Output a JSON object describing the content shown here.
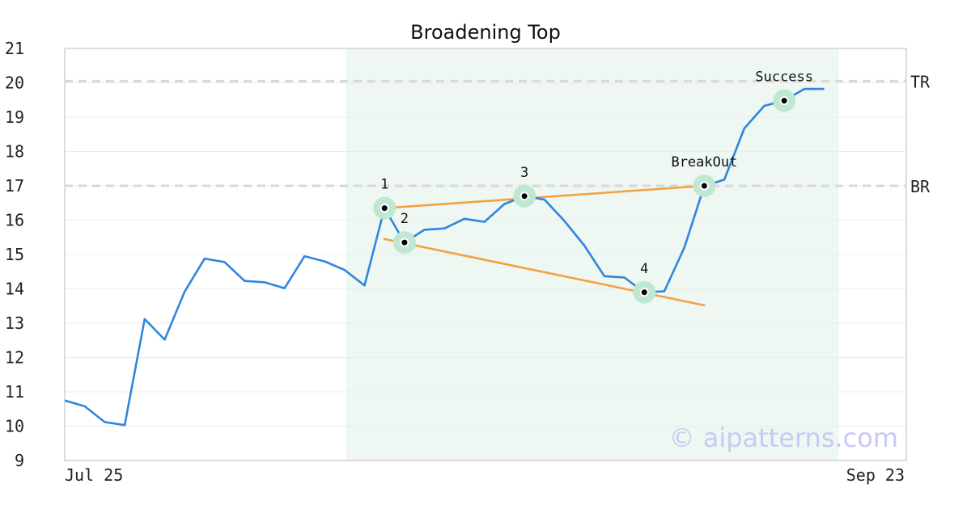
{
  "chart_data": {
    "type": "line",
    "title": "Broadening Top",
    "xlabel": "",
    "ylabel": "",
    "ylim": [
      9,
      21
    ],
    "yticks": [
      9,
      10,
      11,
      12,
      13,
      14,
      15,
      16,
      17,
      18,
      19,
      20,
      21
    ],
    "x_tick_labels": [
      "Jul 25",
      "Sep 23"
    ],
    "grid": true,
    "series": [
      {
        "color": "#2e86de",
        "values": [
          10.75,
          10.58,
          10.12,
          10.03,
          13.12,
          12.52,
          13.92,
          14.88,
          14.78,
          14.23,
          14.19,
          14.02,
          14.95,
          14.8,
          14.55,
          14.1,
          16.35,
          15.35,
          15.72,
          15.76,
          16.04,
          15.95,
          16.47,
          16.7,
          16.6,
          15.98,
          15.26,
          14.37,
          14.33,
          13.9,
          13.93,
          15.2,
          17.0,
          17.18,
          18.67,
          19.33,
          19.48,
          19.82,
          19.82
        ]
      }
    ],
    "reference_lines": [
      {
        "label": "TR",
        "y": 20.05
      },
      {
        "label": "BR",
        "y": 17.0
      }
    ],
    "highlight_region": {
      "from_index": 14,
      "to_index": 38,
      "color": "#eef7f2"
    },
    "trend_lines": [
      {
        "color": "#f4a043",
        "from": [
          16,
          16.35
        ],
        "to": [
          32,
          17.0
        ]
      },
      {
        "color": "#f4a043",
        "from": [
          16,
          15.45
        ],
        "to": [
          32,
          13.52
        ]
      }
    ],
    "annotations": [
      {
        "label": "1",
        "index": 16,
        "y": 16.35
      },
      {
        "label": "2",
        "index": 17,
        "y": 15.35
      },
      {
        "label": "3",
        "index": 23,
        "y": 16.7
      },
      {
        "label": "4",
        "index": 29,
        "y": 13.9
      },
      {
        "label": "BreakOut",
        "index": 32,
        "y": 17.0
      },
      {
        "label": "Success",
        "index": 36,
        "y": 19.48
      }
    ],
    "watermark": "© aipatterns.com"
  }
}
